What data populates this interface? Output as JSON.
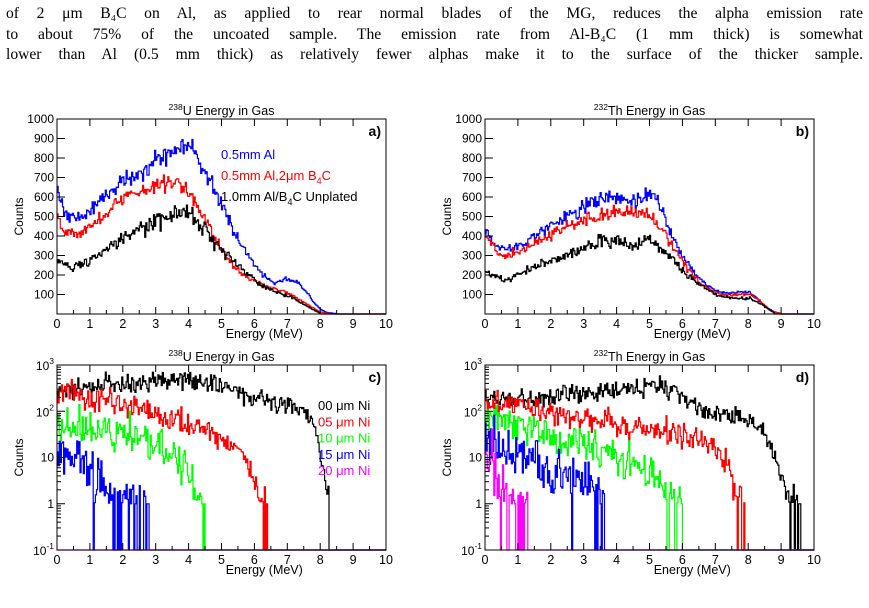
{
  "text_lines": [
    "of 2 μm B₄C on Al, as applied to rear normal blades of the MG, reduces the alpha emission rate",
    "to about 75% of the uncoated sample. The emission rate from Al-B₄C (1 mm thick) is somewhat",
    "lower than Al (0.5 mm thick) as relatively fewer alphas make it to the surface of the thicker sample."
  ],
  "colors": {
    "black": "#000000",
    "blue": "#0000ff",
    "red": "#ff0000",
    "green": "#00ff00",
    "magenta": "#ff00ff"
  },
  "chart_data": [
    {
      "panel": "a)",
      "type": "line",
      "title": "238U Energy in Gas",
      "title_sup": "238",
      "title_main": "U Energy in Gas",
      "xlabel": "Energy (MeV)",
      "ylabel": "Counts",
      "xlim": [
        0,
        10
      ],
      "ylim": [
        0,
        1000
      ],
      "log_y": false,
      "xticks": [
        0,
        1,
        2,
        3,
        4,
        5,
        6,
        7,
        8,
        9,
        10
      ],
      "yticks": [
        100,
        200,
        300,
        400,
        500,
        600,
        700,
        800,
        900,
        1000
      ],
      "legend": "top-right",
      "series": [
        {
          "name": "0.5mm Al",
          "color": "#0000ff",
          "noise": 0.05,
          "x": [
            0,
            0.15,
            0.4,
            0.8,
            1.2,
            1.6,
            2,
            2.4,
            2.8,
            3.2,
            3.6,
            4,
            4.2,
            4.6,
            5,
            5.4,
            5.8,
            6.2,
            6.6,
            7,
            7.3,
            7.6,
            7.8,
            8,
            8.2,
            8.5
          ],
          "y": [
            650,
            560,
            490,
            500,
            560,
            630,
            680,
            720,
            760,
            800,
            840,
            870,
            820,
            700,
            560,
            420,
            300,
            210,
            160,
            180,
            165,
            110,
            60,
            25,
            8,
            2
          ]
        },
        {
          "name": "0.5mm Al,2μm B4C",
          "color": "#ff0000",
          "noise": 0.05,
          "x": [
            0,
            0.15,
            0.4,
            0.8,
            1.2,
            1.6,
            2,
            2.4,
            2.8,
            3.2,
            3.6,
            4,
            4.4,
            4.8,
            5.2,
            5.6,
            6,
            6.4,
            6.8,
            7.2,
            7.5,
            7.8,
            8,
            8.3
          ],
          "y": [
            520,
            450,
            410,
            420,
            470,
            540,
            590,
            620,
            650,
            670,
            680,
            630,
            520,
            390,
            280,
            210,
            170,
            140,
            120,
            90,
            60,
            30,
            10,
            2
          ]
        },
        {
          "name": "1.0mm Al/B4C Unplated",
          "color": "#000000",
          "noise": 0.07,
          "x": [
            0,
            0.5,
            1,
            1.5,
            2,
            2.5,
            3,
            3.5,
            4,
            4.3,
            4.7,
            5.2,
            5.7,
            6.2,
            6.7,
            7.2,
            7.5,
            7.8,
            8
          ],
          "y": [
            270,
            240,
            275,
            330,
            380,
            430,
            470,
            500,
            520,
            470,
            390,
            300,
            220,
            150,
            110,
            80,
            50,
            20,
            5
          ]
        }
      ]
    },
    {
      "panel": "b)",
      "type": "line",
      "title": "232Th Energy in Gas",
      "title_sup": "232",
      "title_main": "Th Energy in Gas",
      "xlabel": "Energy (MeV)",
      "ylabel": "Counts",
      "xlim": [
        0,
        10
      ],
      "ylim": [
        0,
        1000
      ],
      "log_y": false,
      "xticks": [
        0,
        1,
        2,
        3,
        4,
        5,
        6,
        7,
        8,
        9,
        10
      ],
      "yticks": [
        100,
        200,
        300,
        400,
        500,
        600,
        700,
        800,
        900,
        1000
      ],
      "series": [
        {
          "color": "#0000ff",
          "noise": 0.05,
          "x": [
            0,
            0.2,
            0.6,
            1,
            1.5,
            2,
            2.5,
            3,
            3.5,
            4,
            4.5,
            5,
            5.3,
            5.6,
            6,
            6.4,
            6.8,
            7.2,
            7.6,
            8,
            8.2,
            8.5,
            8.8,
            9
          ],
          "y": [
            440,
            380,
            330,
            350,
            400,
            450,
            500,
            550,
            590,
            590,
            570,
            620,
            560,
            430,
            300,
            200,
            140,
            110,
            110,
            115,
            90,
            40,
            10,
            2
          ]
        },
        {
          "color": "#ff0000",
          "noise": 0.05,
          "x": [
            0,
            0.2,
            0.6,
            1,
            1.5,
            2,
            2.5,
            3,
            3.5,
            4,
            4.5,
            5,
            5.4,
            5.8,
            6.2,
            6.6,
            7,
            7.4,
            7.8,
            8.1,
            8.4,
            8.7,
            9
          ],
          "y": [
            410,
            350,
            300,
            320,
            360,
            410,
            450,
            480,
            500,
            520,
            520,
            500,
            430,
            320,
            220,
            150,
            110,
            95,
            100,
            100,
            60,
            15,
            2
          ]
        },
        {
          "color": "#000000",
          "noise": 0.07,
          "x": [
            0,
            0.2,
            0.6,
            1,
            1.5,
            2,
            2.5,
            3,
            3.5,
            4,
            4.5,
            5,
            5.5,
            6,
            6.5,
            7,
            7.5,
            7.8,
            8.1,
            8.5,
            8.8
          ],
          "y": [
            230,
            200,
            170,
            200,
            240,
            270,
            300,
            340,
            370,
            370,
            350,
            390,
            320,
            220,
            150,
            100,
            80,
            80,
            80,
            40,
            5
          ]
        }
      ]
    },
    {
      "panel": "c)",
      "type": "line",
      "title": "238U Energy in Gas",
      "title_sup": "238",
      "title_main": "U Energy in Gas",
      "xlabel": "Energy (MeV)",
      "ylabel": "Counts",
      "xlim": [
        0,
        10
      ],
      "ylim": [
        0.1,
        1000
      ],
      "log_y": true,
      "xticks": [
        0,
        1,
        2,
        3,
        4,
        5,
        6,
        7,
        8,
        9,
        10
      ],
      "legend": "right",
      "series": [
        {
          "name": "00 μm Ni",
          "color": "#000000",
          "noise": 0.15,
          "x": [
            0,
            0.5,
            1,
            2,
            3,
            3.5,
            4,
            4.5,
            5,
            5.5,
            6,
            6.5,
            7,
            7.5,
            7.8,
            8,
            8.1,
            8.2,
            8.3
          ],
          "y": [
            280,
            300,
            330,
            400,
            460,
            500,
            480,
            440,
            350,
            260,
            190,
            170,
            150,
            100,
            50,
            12,
            4,
            1.2,
            0.3
          ]
        },
        {
          "name": "05 μm Ni",
          "color": "#ff0000",
          "noise": 0.2,
          "x": [
            0,
            0.5,
            1,
            1.5,
            2,
            2.5,
            3,
            3.5,
            4,
            4.5,
            5,
            5.5,
            5.8,
            6,
            6.2,
            6.4
          ],
          "y": [
            260,
            230,
            200,
            170,
            140,
            110,
            85,
            70,
            55,
            40,
            25,
            12,
            6,
            3,
            1,
            0.3
          ]
        },
        {
          "name": "10 μm Ni",
          "color": "#00ff00",
          "noise": 0.3,
          "x": [
            0,
            0.4,
            1,
            1.5,
            2,
            2.5,
            3,
            3.5,
            3.9,
            4.1,
            4.3,
            4.5
          ],
          "y": [
            40,
            50,
            42,
            38,
            32,
            26,
            20,
            12,
            6,
            2.5,
            1,
            0.3
          ]
        },
        {
          "name": "15 μm Ni",
          "color": "#0000ff",
          "noise": 0.45,
          "x": [
            0,
            0.2,
            0.4,
            0.7,
            1,
            1.3,
            1.6,
            1.9,
            2.2,
            2.5,
            2.8
          ],
          "y": [
            12,
            15,
            10,
            7,
            4,
            2.5,
            1.5,
            1,
            0.6,
            0.4,
            0.25
          ]
        },
        {
          "name": "20 μm Ni",
          "color": "#ff00ff",
          "x": [
            0,
            10
          ],
          "y": [
            0.1,
            0.1
          ]
        }
      ]
    },
    {
      "panel": "d)",
      "type": "line",
      "title": "232Th Energy in Gas",
      "title_sup": "232",
      "title_main": "Th Energy in Gas",
      "xlabel": "Energy (MeV)",
      "ylabel": "Counts",
      "xlim": [
        0,
        10
      ],
      "ylim": [
        0.1,
        1000
      ],
      "log_y": true,
      "xticks": [
        0,
        1,
        2,
        3,
        4,
        5,
        6,
        7,
        8,
        9,
        10
      ],
      "series": [
        {
          "color": "#000000",
          "noise": 0.15,
          "x": [
            0,
            0.5,
            1,
            2,
            3,
            4,
            5,
            5.5,
            6,
            6.5,
            7,
            7.5,
            8,
            8.5,
            8.8,
            9,
            9.2,
            9.4,
            9.6
          ],
          "y": [
            200,
            180,
            160,
            200,
            260,
            300,
            350,
            320,
            220,
            120,
            80,
            80,
            70,
            30,
            10,
            4,
            1.5,
            0.6,
            0.2
          ]
        },
        {
          "color": "#ff0000",
          "noise": 0.2,
          "x": [
            0,
            0.5,
            1,
            1.5,
            2,
            2.5,
            3,
            3.5,
            4,
            4.5,
            5,
            5.5,
            6,
            6.5,
            7,
            7.3,
            7.5,
            7.7,
            7.9
          ],
          "y": [
            150,
            140,
            130,
            110,
            100,
            85,
            75,
            65,
            55,
            45,
            40,
            35,
            30,
            25,
            15,
            8,
            3,
            1,
            0.3
          ]
        },
        {
          "color": "#00ff00",
          "noise": 0.28,
          "x": [
            0,
            0.3,
            0.8,
            1.5,
            2,
            2.5,
            3,
            3.5,
            4,
            4.5,
            5,
            5.3,
            5.6,
            5.8,
            6
          ],
          "y": [
            60,
            70,
            50,
            38,
            30,
            25,
            20,
            16,
            12,
            8,
            5,
            3,
            1.5,
            0.8,
            0.3
          ]
        },
        {
          "color": "#0000ff",
          "noise": 0.4,
          "x": [
            0,
            0.3,
            0.8,
            1.5,
            2,
            2.5,
            3,
            3.3,
            3.6,
            3.8
          ],
          "y": [
            20,
            15,
            12,
            8,
            6,
            4,
            2.5,
            1.5,
            0.6,
            0.3
          ]
        },
        {
          "color": "#ff00ff",
          "noise": 0.55,
          "x": [
            0,
            0.2,
            0.4,
            0.6,
            0.8,
            1,
            1.2,
            1.4
          ],
          "y": [
            5,
            8,
            2,
            1,
            0.6,
            0.4,
            0.3,
            0.2
          ]
        }
      ]
    }
  ]
}
